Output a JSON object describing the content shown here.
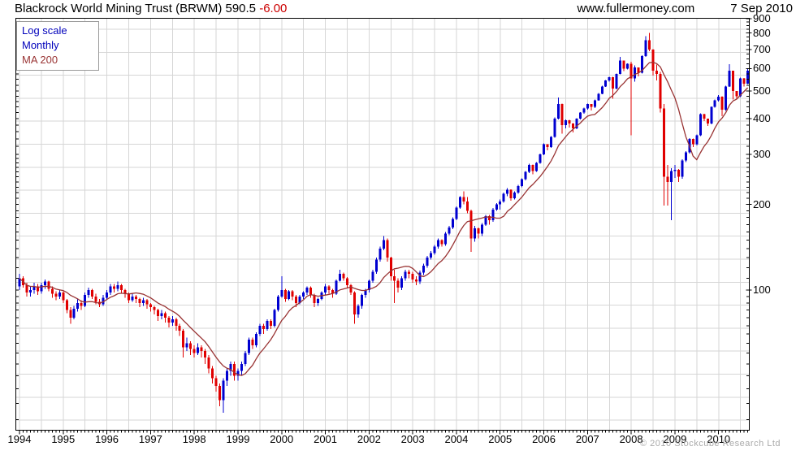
{
  "header": {
    "title": "Blackrock World Mining Trust (BRWM) 590.5",
    "change": "-6.00",
    "site": "www.fullermoney.com",
    "date": "7 Sep 2010"
  },
  "legend": {
    "scale": "Log scale",
    "interval": "Monthly",
    "ma": "MA 200"
  },
  "footer": {
    "copyright": "© 2010 Stockcube Research Ltd"
  },
  "colors": {
    "up": "#0000d0",
    "down": "#e00000",
    "ma": "#993333",
    "grid": "#d6d6d6",
    "axis": "#000000",
    "legend_blue": "#0000bb",
    "change_red": "#cc0000",
    "copyright_gray": "#aaaaaa"
  },
  "chart_data": {
    "type": "candlestick",
    "scale": "log",
    "interval": "monthly",
    "start": "1994-01",
    "end": "2010-09",
    "ma_period": 200,
    "y_axis": {
      "range": [
        32,
        905
      ],
      "labels": [
        900,
        800,
        700,
        600,
        500,
        400,
        300,
        200,
        100
      ]
    },
    "x_axis": {
      "years": [
        1994,
        1995,
        1996,
        1997,
        1998,
        1999,
        2000,
        2001,
        2002,
        2003,
        2004,
        2005,
        2006,
        2007,
        2008,
        2009,
        2010
      ]
    },
    "candles": [
      [
        103,
        114,
        100,
        110
      ],
      [
        110,
        112,
        102,
        104
      ],
      [
        104,
        106,
        95,
        98
      ],
      [
        98,
        103,
        95,
        100
      ],
      [
        100,
        106,
        97,
        103
      ],
      [
        103,
        105,
        96,
        99
      ],
      [
        99,
        106,
        97,
        104
      ],
      [
        104,
        109,
        101,
        107
      ],
      [
        107,
        108,
        99,
        101
      ],
      [
        101,
        103,
        94,
        97
      ],
      [
        97,
        99,
        92,
        95
      ],
      [
        95,
        100,
        93,
        98
      ],
      [
        98,
        99,
        90,
        92
      ],
      [
        92,
        93,
        83,
        85
      ],
      [
        85,
        87,
        76,
        80
      ],
      [
        80,
        88,
        79,
        86
      ],
      [
        86,
        93,
        84,
        90
      ],
      [
        90,
        92,
        85,
        88
      ],
      [
        88,
        98,
        87,
        96
      ],
      [
        96,
        102,
        94,
        100
      ],
      [
        100,
        101,
        93,
        95
      ],
      [
        95,
        97,
        89,
        91
      ],
      [
        91,
        93,
        87,
        89
      ],
      [
        89,
        96,
        88,
        94
      ],
      [
        94,
        100,
        92,
        98
      ],
      [
        98,
        105,
        96,
        103
      ],
      [
        103,
        105,
        98,
        101
      ],
      [
        101,
        107,
        99,
        104
      ],
      [
        104,
        105,
        97,
        100
      ],
      [
        100,
        101,
        94,
        97
      ],
      [
        97,
        98,
        90,
        92
      ],
      [
        92,
        97,
        91,
        95
      ],
      [
        95,
        96,
        90,
        93
      ],
      [
        93,
        94,
        87,
        90
      ],
      [
        90,
        94,
        88,
        92
      ],
      [
        92,
        93,
        86,
        89
      ],
      [
        89,
        90,
        84,
        87
      ],
      [
        87,
        88,
        82,
        85
      ],
      [
        85,
        86,
        78,
        81
      ],
      [
        81,
        85,
        79,
        83
      ],
      [
        83,
        84,
        77,
        80
      ],
      [
        80,
        81,
        74,
        77
      ],
      [
        77,
        81,
        75,
        79
      ],
      [
        79,
        80,
        72,
        75
      ],
      [
        75,
        76,
        69,
        72
      ],
      [
        72,
        73,
        58,
        63
      ],
      [
        63,
        68,
        61,
        65
      ],
      [
        65,
        66,
        59,
        62
      ],
      [
        62,
        64,
        58,
        60
      ],
      [
        60,
        65,
        59,
        63
      ],
      [
        63,
        64,
        58,
        61
      ],
      [
        61,
        62,
        55,
        58
      ],
      [
        58,
        59,
        51,
        53
      ],
      [
        53,
        54,
        47,
        49
      ],
      [
        49,
        50,
        44,
        46
      ],
      [
        46,
        47,
        39,
        41
      ],
      [
        41,
        49,
        37,
        48
      ],
      [
        48,
        53,
        46,
        52
      ],
      [
        52,
        56,
        50,
        55
      ],
      [
        55,
        56,
        48,
        50
      ],
      [
        50,
        53,
        48,
        52
      ],
      [
        52,
        56,
        50,
        55
      ],
      [
        55,
        61,
        54,
        60
      ],
      [
        60,
        68,
        59,
        67
      ],
      [
        67,
        68,
        62,
        64
      ],
      [
        64,
        71,
        63,
        70
      ],
      [
        70,
        76,
        69,
        75
      ],
      [
        75,
        76,
        70,
        73
      ],
      [
        73,
        79,
        72,
        78
      ],
      [
        78,
        79,
        73,
        75
      ],
      [
        75,
        86,
        74,
        85
      ],
      [
        85,
        96,
        84,
        95
      ],
      [
        95,
        112,
        94,
        100
      ],
      [
        100,
        101,
        91,
        93
      ],
      [
        93,
        100,
        92,
        99
      ],
      [
        99,
        100,
        92,
        95
      ],
      [
        95,
        96,
        87,
        90
      ],
      [
        90,
        96,
        89,
        95
      ],
      [
        95,
        99,
        93,
        98
      ],
      [
        98,
        103,
        96,
        102
      ],
      [
        102,
        103,
        94,
        96
      ],
      [
        96,
        97,
        87,
        90
      ],
      [
        90,
        94,
        88,
        93
      ],
      [
        93,
        99,
        92,
        98
      ],
      [
        98,
        105,
        96,
        103
      ],
      [
        103,
        104,
        97,
        100
      ],
      [
        100,
        101,
        94,
        97
      ],
      [
        97,
        109,
        96,
        108
      ],
      [
        108,
        118,
        107,
        114
      ],
      [
        114,
        115,
        108,
        110
      ],
      [
        110,
        111,
        102,
        104
      ],
      [
        104,
        105,
        96,
        98
      ],
      [
        98,
        99,
        76,
        82
      ],
      [
        82,
        89,
        80,
        88
      ],
      [
        88,
        97,
        86,
        96
      ],
      [
        96,
        101,
        94,
        100
      ],
      [
        100,
        109,
        98,
        108
      ],
      [
        108,
        118,
        106,
        116
      ],
      [
        116,
        130,
        114,
        128
      ],
      [
        128,
        142,
        126,
        140
      ],
      [
        140,
        155,
        138,
        150
      ],
      [
        150,
        152,
        126,
        130
      ],
      [
        130,
        131,
        108,
        112
      ],
      [
        112,
        118,
        90,
        108
      ],
      [
        108,
        110,
        98,
        102
      ],
      [
        102,
        112,
        100,
        110
      ],
      [
        110,
        118,
        108,
        116
      ],
      [
        116,
        118,
        110,
        114
      ],
      [
        114,
        116,
        106,
        109
      ],
      [
        109,
        112,
        104,
        107
      ],
      [
        107,
        117,
        105,
        115
      ],
      [
        115,
        124,
        113,
        122
      ],
      [
        122,
        132,
        120,
        130
      ],
      [
        130,
        137,
        128,
        135
      ],
      [
        135,
        144,
        133,
        142
      ],
      [
        142,
        152,
        140,
        150
      ],
      [
        150,
        151,
        142,
        145
      ],
      [
        145,
        160,
        143,
        158
      ],
      [
        158,
        168,
        156,
        166
      ],
      [
        166,
        180,
        164,
        178
      ],
      [
        178,
        197,
        176,
        195
      ],
      [
        195,
        214,
        193,
        212
      ],
      [
        212,
        222,
        200,
        205
      ],
      [
        205,
        212,
        186,
        190
      ],
      [
        190,
        192,
        136,
        152
      ],
      [
        152,
        168,
        148,
        165
      ],
      [
        165,
        166,
        152,
        158
      ],
      [
        158,
        172,
        155,
        170
      ],
      [
        170,
        184,
        168,
        182
      ],
      [
        182,
        184,
        170,
        176
      ],
      [
        176,
        194,
        174,
        192
      ],
      [
        192,
        202,
        190,
        200
      ],
      [
        200,
        208,
        192,
        205
      ],
      [
        205,
        220,
        203,
        218
      ],
      [
        218,
        228,
        214,
        225
      ],
      [
        225,
        226,
        206,
        210
      ],
      [
        210,
        222,
        208,
        220
      ],
      [
        220,
        234,
        218,
        232
      ],
      [
        232,
        247,
        230,
        245
      ],
      [
        245,
        262,
        243,
        260
      ],
      [
        260,
        278,
        258,
        275
      ],
      [
        275,
        276,
        255,
        262
      ],
      [
        262,
        282,
        260,
        280
      ],
      [
        280,
        302,
        278,
        300
      ],
      [
        300,
        328,
        298,
        325
      ],
      [
        325,
        326,
        310,
        318
      ],
      [
        318,
        348,
        316,
        345
      ],
      [
        345,
        405,
        343,
        400
      ],
      [
        400,
        475,
        398,
        450
      ],
      [
        450,
        452,
        355,
        380
      ],
      [
        380,
        398,
        370,
        395
      ],
      [
        395,
        396,
        372,
        385
      ],
      [
        385,
        386,
        358,
        370
      ],
      [
        370,
        402,
        368,
        400
      ],
      [
        400,
        422,
        398,
        420
      ],
      [
        420,
        437,
        416,
        435
      ],
      [
        435,
        452,
        430,
        450
      ],
      [
        450,
        451,
        428,
        440
      ],
      [
        440,
        467,
        436,
        465
      ],
      [
        465,
        492,
        462,
        490
      ],
      [
        490,
        522,
        488,
        520
      ],
      [
        520,
        547,
        518,
        545
      ],
      [
        545,
        562,
        540,
        560
      ],
      [
        560,
        561,
        470,
        510
      ],
      [
        510,
        577,
        508,
        575
      ],
      [
        575,
        660,
        573,
        640
      ],
      [
        640,
        641,
        588,
        600
      ],
      [
        600,
        627,
        596,
        625
      ],
      [
        625,
        635,
        350,
        555
      ],
      [
        555,
        615,
        540,
        605
      ],
      [
        605,
        606,
        563,
        580
      ],
      [
        580,
        668,
        576,
        665
      ],
      [
        665,
        780,
        660,
        755
      ],
      [
        755,
        800,
        690,
        700
      ],
      [
        700,
        702,
        568,
        590
      ],
      [
        590,
        620,
        545,
        575
      ],
      [
        575,
        585,
        420,
        435
      ],
      [
        435,
        450,
        198,
        250
      ],
      [
        250,
        275,
        198,
        240
      ],
      [
        240,
        268,
        176,
        262
      ],
      [
        262,
        275,
        248,
        265
      ],
      [
        265,
        266,
        240,
        250
      ],
      [
        250,
        288,
        246,
        285
      ],
      [
        285,
        308,
        282,
        305
      ],
      [
        305,
        342,
        302,
        340
      ],
      [
        340,
        341,
        318,
        325
      ],
      [
        325,
        352,
        322,
        350
      ],
      [
        350,
        418,
        348,
        415
      ],
      [
        415,
        416,
        392,
        400
      ],
      [
        400,
        401,
        378,
        385
      ],
      [
        385,
        442,
        382,
        440
      ],
      [
        440,
        468,
        438,
        465
      ],
      [
        465,
        485,
        460,
        478
      ],
      [
        478,
        479,
        408,
        430
      ],
      [
        430,
        522,
        426,
        520
      ],
      [
        520,
        622,
        518,
        590
      ],
      [
        590,
        591,
        468,
        500
      ],
      [
        500,
        501,
        470,
        480
      ],
      [
        480,
        558,
        476,
        555
      ],
      [
        555,
        556,
        520,
        532
      ],
      [
        532,
        600,
        530,
        590
      ]
    ]
  }
}
